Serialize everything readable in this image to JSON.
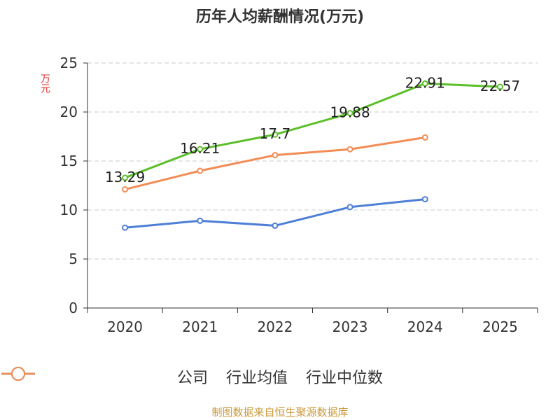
{
  "chart_data": {
    "type": "line",
    "title": "历年人均薪酬情况(万元)",
    "ylabel": "万元",
    "xlabel": "",
    "categories": [
      "2020",
      "2021",
      "2022",
      "2023",
      "2024",
      "2025"
    ],
    "ylim": [
      0,
      25
    ],
    "yticks": [
      0,
      5,
      10,
      15,
      20,
      25
    ],
    "grid": "horizontal-dashed",
    "legend_position": "bottom",
    "series": [
      {
        "name": "公司",
        "color": "#5cbf2a",
        "values": [
          13.29,
          16.21,
          17.7,
          19.88,
          22.91,
          22.57
        ],
        "labels": [
          "13.29",
          "16.21",
          "17.7",
          "19.88",
          "22.91",
          "22.57"
        ]
      },
      {
        "name": "行业均值",
        "color": "#4d7fd6",
        "values": [
          8.2,
          8.9,
          8.4,
          10.3,
          11.1,
          null
        ]
      },
      {
        "name": "行业中位数",
        "color": "#f28c55",
        "values": [
          12.1,
          14.0,
          15.6,
          16.2,
          17.4,
          null
        ]
      }
    ]
  },
  "source": "制图数据来自恒生聚源数据库"
}
